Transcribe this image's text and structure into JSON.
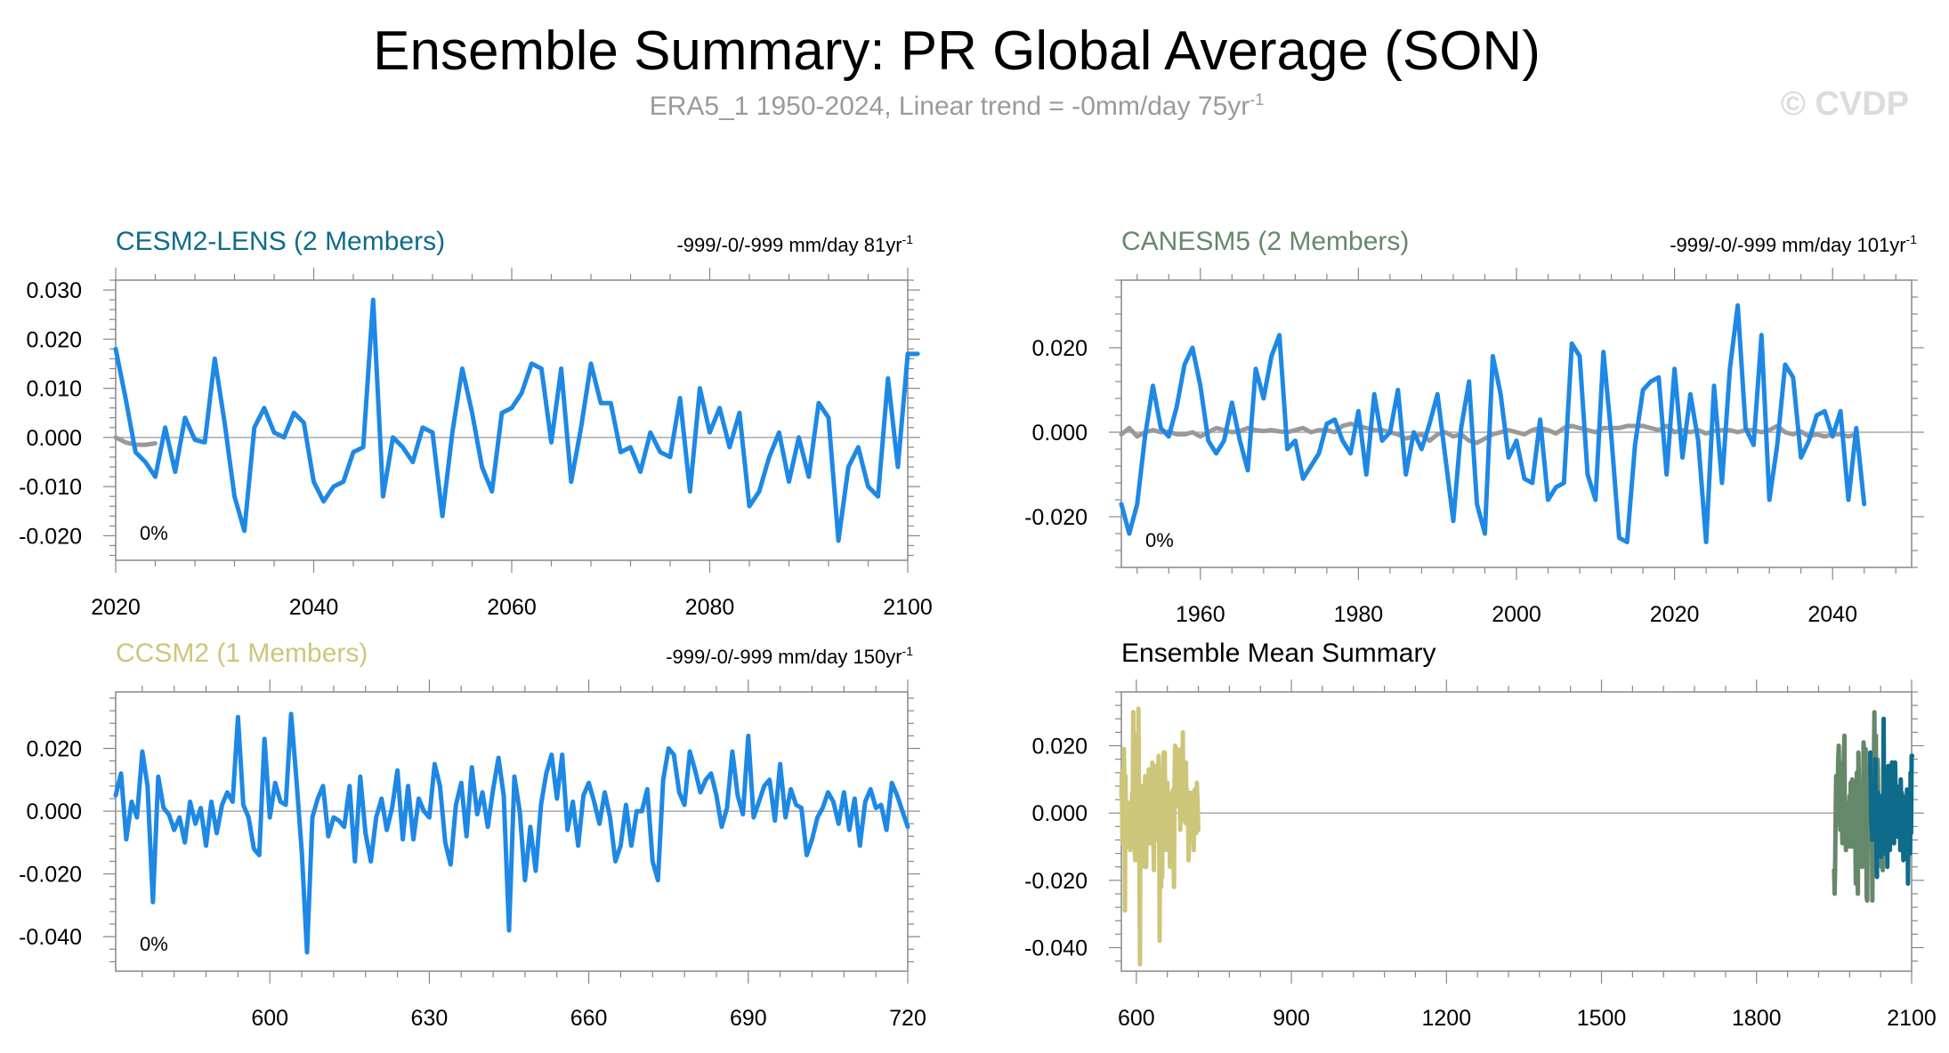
{
  "title": "Ensemble Summary: PR Global Average (SON)",
  "subtitle": {
    "text": "ERA5_1 1950-2024, Linear trend = -0mm/day 75yr",
    "sup": "-1"
  },
  "watermark": "© CVDP",
  "colors": {
    "line": "#1e88e5",
    "obs": "#999999",
    "cesm2": "#0e6b8a",
    "canesm5": "#66886a",
    "ccsm2": "#cdc67a",
    "axis": "#888888",
    "zero": "#aaaaaa"
  },
  "chart_data": [
    {
      "type": "line",
      "title": "CESM2-LENS (2 Members)",
      "title_color": "#0e6b8a",
      "stat_label": {
        "text": "-999/-0/-999 mm/day 81yr",
        "sup": "-1"
      },
      "pct_label": "0%",
      "xlim": [
        2020,
        2100
      ],
      "ylim": [
        -0.025,
        0.032
      ],
      "xticks": [
        2020,
        2040,
        2060,
        2080,
        2100
      ],
      "xtick_labels": [
        "2020",
        "2040",
        "2060",
        "2080",
        "2100"
      ],
      "yticks": [
        -0.02,
        -0.01,
        0.0,
        0.01,
        0.02,
        0.03
      ],
      "ytick_labels": [
        "-0.020",
        "-0.010",
        "0.000",
        "0.010",
        "0.020",
        "0.030"
      ],
      "series": [
        {
          "role": "obs",
          "x_start": 2020,
          "x_step": 1,
          "values": [
            0.0,
            -0.001,
            -0.0015,
            -0.0015,
            -0.0012
          ]
        },
        {
          "role": "model",
          "x_start": 2020,
          "x_step": 1,
          "values": [
            0.018,
            0.008,
            -0.003,
            -0.005,
            -0.008,
            0.002,
            -0.007,
            0.004,
            -0.0005,
            -0.001,
            0.016,
            0.003,
            -0.012,
            -0.019,
            0.002,
            0.006,
            0.001,
            0.0,
            0.005,
            0.003,
            -0.009,
            -0.013,
            -0.01,
            -0.009,
            -0.003,
            -0.002,
            0.028,
            -0.012,
            0.0,
            -0.002,
            -0.005,
            0.002,
            0.001,
            -0.016,
            0.001,
            0.014,
            0.005,
            -0.006,
            -0.011,
            0.005,
            0.006,
            0.009,
            0.015,
            0.014,
            -0.001,
            0.014,
            -0.009,
            0.002,
            0.015,
            0.007,
            0.007,
            -0.003,
            -0.002,
            -0.007,
            0.001,
            -0.003,
            -0.004,
            0.008,
            -0.011,
            0.01,
            0.001,
            0.006,
            -0.002,
            0.005,
            -0.014,
            -0.011,
            -0.004,
            0.001,
            -0.009,
            0.0,
            -0.008,
            0.007,
            0.004,
            -0.021,
            -0.006,
            -0.002,
            -0.01,
            -0.012,
            0.012,
            -0.006,
            0.017,
            0.017
          ]
        }
      ]
    },
    {
      "type": "line",
      "title": "CANESM5 (2 Members)",
      "title_color": "#66886a",
      "stat_label": {
        "text": "-999/-0/-999 mm/day 101yr",
        "sup": "-1"
      },
      "pct_label": "0%",
      "xlim": [
        1950,
        2050
      ],
      "ylim": [
        -0.032,
        0.036
      ],
      "xticks": [
        1960,
        1980,
        2000,
        2020,
        2040
      ],
      "xtick_labels": [
        "1960",
        "1980",
        "2000",
        "2020",
        "2040"
      ],
      "yticks": [
        -0.02,
        0.0,
        0.02
      ],
      "ytick_labels": [
        "-0.020",
        "0.000",
        "0.020"
      ],
      "series": [
        {
          "role": "obs",
          "x_start": 1950,
          "x_step": 1,
          "values": [
            -0.0005,
            0.001,
            -0.001,
            0.0,
            0.0005,
            0.0,
            0.0002,
            -0.0005,
            -0.0005,
            0.0,
            -0.001,
            0.0,
            0.001,
            0.0005,
            0.0,
            0.0003,
            0.001,
            0.0005,
            0.0003,
            0.0005,
            0.0002,
            0.0,
            0.0005,
            0.001,
            0.0,
            0.0005,
            0.0005,
            0.0,
            0.0015,
            0.002,
            0.0015,
            0.001,
            0.0005,
            0.0005,
            0.0,
            -0.0005,
            -0.0015,
            -0.001,
            -0.0005,
            -0.002,
            -0.0005,
            0.0,
            -0.001,
            -0.0005,
            -0.002,
            -0.0025,
            -0.0015,
            -0.0005,
            0.0,
            0.0005,
            0.0,
            -0.0005,
            0.0005,
            0.001,
            0.0005,
            -0.0003,
            0.001,
            0.0015,
            0.001,
            0.0005,
            0.0,
            0.001,
            0.001,
            0.001,
            0.0015,
            0.0015,
            0.0015,
            0.001,
            0.0005,
            0.0015,
            0.0,
            0.0005,
            0.0,
            0.0005,
            -0.0003,
            0.0003,
            0.0005,
            0.0005,
            0.0,
            0.0005,
            0.0005,
            0.0,
            0.0005,
            0.0015,
            0.0,
            -0.0005,
            0.0002,
            -0.001,
            -0.0005,
            -0.001,
            -0.0005,
            -0.0005,
            -0.001,
            -0.0005
          ]
        },
        {
          "role": "model",
          "x_start": 1950,
          "x_step": 1,
          "values": [
            -0.017,
            -0.024,
            -0.017,
            -0.001,
            0.011,
            0.001,
            -0.001,
            0.006,
            0.016,
            0.02,
            0.011,
            -0.002,
            -0.005,
            -0.002,
            0.007,
            -0.002,
            -0.009,
            0.015,
            0.008,
            0.018,
            0.023,
            -0.004,
            -0.002,
            -0.011,
            -0.008,
            -0.005,
            0.002,
            0.003,
            -0.002,
            -0.005,
            0.005,
            -0.01,
            0.009,
            -0.002,
            0.0,
            0.01,
            -0.01,
            0.0,
            -0.004,
            0.002,
            0.009,
            -0.006,
            -0.021,
            0.001,
            0.012,
            -0.017,
            -0.024,
            0.018,
            0.009,
            -0.006,
            -0.002,
            -0.011,
            -0.012,
            0.003,
            -0.016,
            -0.013,
            -0.012,
            0.021,
            0.018,
            -0.01,
            -0.016,
            0.019,
            -0.001,
            -0.025,
            -0.026,
            -0.003,
            0.01,
            0.012,
            0.013,
            -0.01,
            0.015,
            -0.006,
            0.009,
            -0.002,
            -0.026,
            0.011,
            -0.012,
            0.015,
            0.03,
            0.001,
            -0.003,
            0.023,
            -0.016,
            -0.003,
            0.016,
            0.013,
            -0.006,
            -0.002,
            0.004,
            0.005,
            -0.001,
            0.005,
            -0.016,
            0.001,
            -0.017
          ]
        }
      ]
    },
    {
      "type": "line",
      "title": "CCSM2 (1 Members)",
      "title_color": "#cdc67a",
      "stat_label": {
        "text": "-999/-0/-999 mm/day 150yr",
        "sup": "-1"
      },
      "pct_label": "0%",
      "xlim": [
        571,
        720
      ],
      "ylim": [
        -0.051,
        0.038
      ],
      "xticks": [
        600,
        630,
        660,
        690,
        720
      ],
      "xtick_labels": [
        "600",
        "630",
        "660",
        "690",
        "720"
      ],
      "yticks": [
        -0.04,
        -0.02,
        0.0,
        0.02
      ],
      "ytick_labels": [
        "-0.040",
        "-0.020",
        "0.000",
        "0.020"
      ],
      "series": [
        {
          "role": "model",
          "x_start": 571,
          "x_step": 1,
          "values": [
            0.005,
            0.012,
            -0.009,
            0.003,
            -0.002,
            0.019,
            0.008,
            -0.029,
            0.011,
            0.001,
            -0.001,
            -0.006,
            -0.002,
            -0.01,
            0.003,
            -0.004,
            0.001,
            -0.011,
            0.003,
            -0.007,
            0.002,
            0.006,
            0.003,
            0.03,
            0.002,
            -0.002,
            -0.012,
            -0.014,
            0.023,
            -0.002,
            0.009,
            0.003,
            0.002,
            0.031,
            0.01,
            -0.013,
            -0.045,
            -0.002,
            0.004,
            0.008,
            -0.008,
            -0.002,
            -0.003,
            -0.005,
            0.008,
            -0.016,
            0.011,
            -0.007,
            -0.016,
            -0.002,
            0.004,
            -0.006,
            0.001,
            0.013,
            -0.009,
            0.008,
            -0.009,
            0.004,
            0.0,
            -0.002,
            0.015,
            0.008,
            -0.01,
            -0.017,
            0.002,
            0.009,
            -0.008,
            0.014,
            -0.001,
            0.006,
            -0.005,
            0.007,
            0.017,
            0.005,
            -0.038,
            0.011,
            0.0,
            -0.022,
            -0.005,
            -0.019,
            0.002,
            0.012,
            0.018,
            0.004,
            0.018,
            -0.006,
            0.003,
            -0.011,
            0.005,
            0.009,
            0.003,
            -0.004,
            0.006,
            -0.002,
            -0.016,
            -0.011,
            0.002,
            -0.011,
            0.0,
            0.0,
            0.007,
            -0.016,
            -0.022,
            0.01,
            0.02,
            0.018,
            0.006,
            0.002,
            0.019,
            0.013,
            0.006,
            0.01,
            0.012,
            0.005,
            -0.005,
            0.001,
            0.019,
            0.005,
            -0.001,
            0.024,
            -0.002,
            0.003,
            0.008,
            0.01,
            -0.003,
            0.015,
            -0.002,
            0.007,
            0.002,
            0.001,
            -0.014,
            -0.009,
            -0.002,
            0.001,
            0.006,
            0.003,
            -0.004,
            0.006,
            -0.006,
            0.004,
            -0.011,
            0.003,
            0.007,
            0.001,
            0.002,
            -0.006,
            0.009,
            0.005,
            0.0,
            -0.005
          ]
        }
      ]
    },
    {
      "type": "line",
      "title": "Ensemble Mean Summary",
      "title_color": "#000000",
      "xlim": [
        571,
        2100
      ],
      "ylim": [
        -0.047,
        0.036
      ],
      "xticks": [
        600,
        900,
        1200,
        1500,
        1800,
        2100
      ],
      "xtick_labels": [
        "600",
        "900",
        "1200",
        "1500",
        "1800",
        "2100"
      ],
      "yticks": [
        -0.04,
        -0.02,
        0.0,
        0.02
      ],
      "ytick_labels": [
        "-0.040",
        "-0.020",
        "0.000",
        "0.020"
      ],
      "series": [
        {
          "name": "CCSM2",
          "color": "#cdc67a",
          "source": 2
        },
        {
          "name": "CANESM5",
          "color": "#66886a",
          "source": 1
        },
        {
          "name": "CESM2-LENS",
          "color": "#0e6b8a",
          "source": 0
        }
      ]
    }
  ]
}
